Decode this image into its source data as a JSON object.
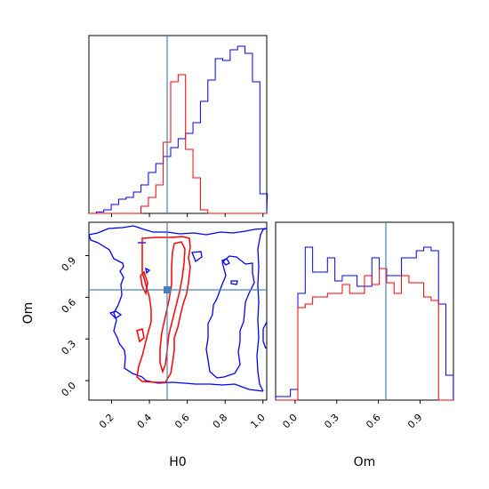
{
  "colors": {
    "posterior_a": "#0000ff",
    "posterior_b": "#ff0000",
    "truth": "#4682b4",
    "axis": "#000000"
  },
  "chart_data": [
    {
      "type": "histogram",
      "panel": "H0 marginal",
      "x_range": [
        0.08,
        1.02
      ],
      "bins_x0": 0.08,
      "bin_width": 0.0393,
      "series": [
        {
          "color": "blue",
          "counts": [
            0,
            0.008,
            0.02,
            0.05,
            0.08,
            0.09,
            0.12,
            0.16,
            0.23,
            0.28,
            0.32,
            0.37,
            0.42,
            0.45,
            0.51,
            0.63,
            0.75,
            0.87,
            0.86,
            0.92,
            0.94,
            0.9,
            0.74,
            0.11
          ]
        },
        {
          "color": "red",
          "counts": [
            0,
            0,
            0,
            0,
            0,
            0,
            0,
            0.04,
            0.09,
            0.16,
            0.4,
            0.74,
            0.78,
            0.36,
            0.2,
            0.02,
            0,
            0,
            0,
            0,
            0,
            0,
            0,
            0
          ]
        }
      ],
      "truth_x": 0.5,
      "ticks": [
        0.2,
        0.4,
        0.6,
        0.8,
        1.0
      ]
    },
    {
      "type": "contour",
      "panel": "H0 vs Om",
      "x_range": [
        0.08,
        1.02
      ],
      "y_range": [
        -0.14,
        1.14
      ],
      "xlabel": "H0",
      "ylabel": "Om",
      "x_ticks": [
        "0.2",
        "0.4",
        "0.6",
        "0.8",
        "1.0"
      ],
      "y_ticks": [
        "0.0",
        "0.3",
        "0.6",
        "0.9"
      ],
      "truth": {
        "x": 0.5,
        "y": 0.66
      }
    },
    {
      "type": "histogram",
      "panel": "Om marginal",
      "x_range": [
        -0.14,
        1.14
      ],
      "bins_x0": -0.14,
      "bin_width": 0.0533,
      "series": [
        {
          "color": "blue",
          "counts": [
            0.02,
            0.02,
            0.06,
            0.6,
            0.86,
            0.72,
            0.72,
            0.8,
            0.67,
            0.7,
            0.7,
            0.64,
            0.64,
            0.8,
            0.74,
            0.7,
            0.7,
            0.8,
            0.8,
            0.84,
            0.86,
            0.84,
            0.54,
            0.14
          ]
        },
        {
          "color": "red",
          "counts": [
            0,
            0,
            0,
            0.52,
            0.54,
            0.58,
            0.58,
            0.6,
            0.6,
            0.65,
            0.6,
            0.6,
            0.7,
            0.65,
            0.74,
            0.66,
            0.6,
            0.7,
            0.66,
            0.66,
            0.58,
            0.56,
            0,
            0
          ]
        }
      ],
      "truth_x": 0.66,
      "xlabel": "Om",
      "x_ticks": [
        "0.0",
        "0.3",
        "0.6",
        "0.9"
      ]
    }
  ]
}
